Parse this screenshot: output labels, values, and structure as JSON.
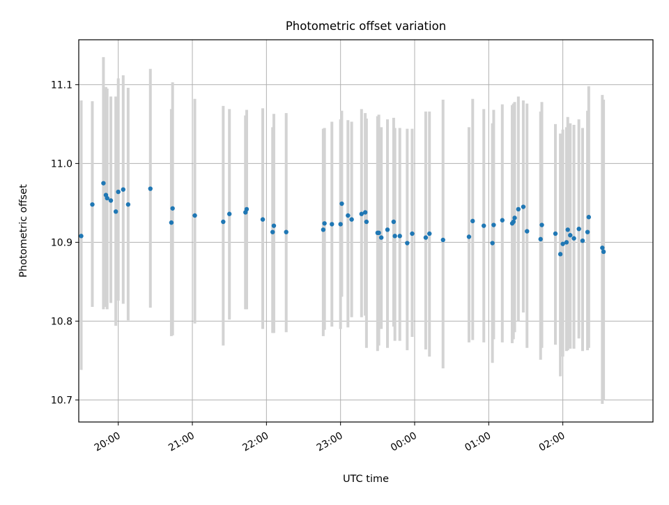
{
  "chart_data": {
    "type": "scatter",
    "title": "Photometric offset variation",
    "xlabel": "UTC time",
    "ylabel": "Photometric offset",
    "x_tick_labels": [
      "20:00",
      "21:00",
      "22:00",
      "23:00",
      "00:00",
      "01:00",
      "02:00"
    ],
    "x_ticks": [
      "20:00",
      "21:00",
      "22:00",
      "23:00",
      "00:00",
      "01:00",
      "02:00"
    ],
    "y_tick_labels": [
      "10.7",
      "10.8",
      "10.9",
      "11.0",
      "11.1"
    ],
    "y_ticks": [
      10.7,
      10.8,
      10.9,
      11.0,
      11.1
    ],
    "xlim": [
      "19:28",
      "03:13"
    ],
    "ylim": [
      10.672,
      11.157
    ],
    "grid": true,
    "legend": "none",
    "colors": {
      "points": "#1f77b4",
      "errorbars": "#d3d3d3",
      "grid": "#b0b0b0"
    },
    "series": [
      {
        "x": [
          "19:30",
          "19:39",
          "19:48",
          "19:50",
          "19:51",
          "19:54",
          "19:58",
          "20:00",
          "20:04",
          "20:08",
          "20:26",
          "20:43",
          "20:44",
          "21:02",
          "21:25",
          "21:30",
          "21:43",
          "21:44",
          "21:57",
          "22:05",
          "22:06",
          "22:16",
          "22:46",
          "22:47",
          "22:53",
          "23:00",
          "23:01",
          "23:06",
          "23:09",
          "23:17",
          "23:20",
          "23:21",
          "23:30",
          "23:31",
          "23:33",
          "23:38",
          "23:43",
          "23:44",
          "23:48",
          "23:54",
          "23:58",
          "00:09",
          "00:12",
          "00:23",
          "00:44",
          "00:47",
          "00:56",
          "01:03",
          "01:04",
          "01:11",
          "01:19",
          "01:20",
          "01:21",
          "01:24",
          "01:28",
          "01:31",
          "01:42",
          "01:43",
          "01:54",
          "01:58",
          "02:00",
          "02:03",
          "02:04",
          "02:06",
          "02:09",
          "02:13",
          "02:16",
          "02:20",
          "02:21",
          "02:32",
          "02:33"
        ],
        "y": [
          10.908,
          10.948,
          10.975,
          10.96,
          10.956,
          10.953,
          10.939,
          10.964,
          10.967,
          10.948,
          10.968,
          10.925,
          10.943,
          10.934,
          10.926,
          10.936,
          10.938,
          10.942,
          10.929,
          10.913,
          10.921,
          10.913,
          10.916,
          10.924,
          10.923,
          10.923,
          10.949,
          10.934,
          10.929,
          10.936,
          10.938,
          10.926,
          10.912,
          10.912,
          10.906,
          10.916,
          10.926,
          10.908,
          10.908,
          10.899,
          10.911,
          10.906,
          10.911,
          10.903,
          10.907,
          10.927,
          10.921,
          10.899,
          10.922,
          10.928,
          10.924,
          10.926,
          10.931,
          10.942,
          10.945,
          10.914,
          10.904,
          10.922,
          10.911,
          10.885,
          10.898,
          10.9,
          10.916,
          10.909,
          10.905,
          10.917,
          10.902,
          10.913,
          10.932,
          10.893,
          10.888
        ],
        "y_low": [
          10.738,
          10.818,
          10.815,
          10.818,
          10.815,
          10.823,
          10.794,
          10.826,
          10.822,
          10.801,
          10.817,
          10.781,
          10.782,
          10.797,
          10.769,
          10.802,
          10.815,
          10.815,
          10.79,
          10.785,
          10.785,
          10.786,
          10.781,
          10.789,
          10.793,
          10.79,
          10.831,
          10.792,
          10.805,
          10.805,
          10.807,
          10.766,
          10.762,
          10.769,
          10.79,
          10.766,
          10.793,
          10.775,
          10.775,
          10.763,
          10.78,
          10.764,
          10.755,
          10.74,
          10.773,
          10.776,
          10.773,
          10.747,
          10.777,
          10.773,
          10.772,
          10.777,
          10.786,
          10.8,
          10.811,
          10.766,
          10.751,
          10.766,
          10.77,
          10.73,
          10.755,
          10.762,
          10.763,
          10.765,
          10.765,
          10.778,
          10.762,
          10.763,
          10.766,
          10.695,
          10.7
        ],
        "y_high": [
          11.08,
          11.079,
          11.135,
          11.097,
          11.095,
          11.085,
          11.085,
          11.108,
          11.112,
          11.096,
          11.12,
          11.069,
          11.103,
          11.082,
          11.073,
          11.069,
          11.061,
          11.068,
          11.07,
          11.046,
          11.063,
          11.064,
          11.044,
          11.045,
          11.053,
          11.056,
          11.067,
          11.055,
          11.053,
          11.069,
          11.064,
          11.057,
          11.06,
          11.062,
          11.046,
          11.056,
          11.058,
          11.045,
          11.045,
          11.044,
          11.044,
          11.066,
          11.066,
          11.081,
          11.046,
          11.082,
          11.069,
          11.051,
          11.068,
          11.075,
          11.074,
          11.076,
          11.078,
          11.085,
          11.08,
          11.076,
          11.066,
          11.078,
          11.05,
          11.038,
          11.043,
          11.046,
          11.059,
          11.051,
          11.049,
          11.056,
          11.045,
          11.067,
          11.098,
          11.087,
          11.081
        ]
      }
    ]
  }
}
